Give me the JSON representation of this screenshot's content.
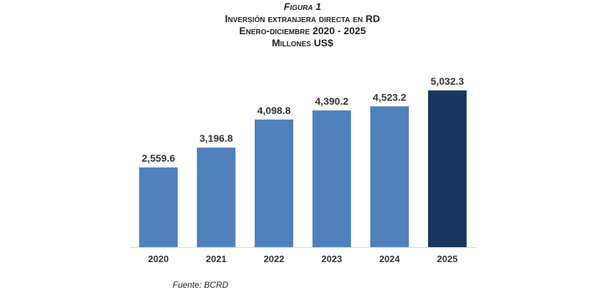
{
  "chart_data": {
    "type": "bar",
    "figure_label": "Figura 1",
    "title": "Inversión extranjera directa en RD",
    "subtitle": "Enero-diciembre 2020 - 2025",
    "units": "Millones US$",
    "categories": [
      "2020",
      "2021",
      "2022",
      "2023",
      "2024",
      "2025"
    ],
    "values": [
      2559.6,
      3196.8,
      4098.8,
      4390.2,
      4523.2,
      5032.3
    ],
    "data_labels": [
      "2,559.6",
      "3,196.8",
      "4,098.8",
      "4,390.2",
      "4,523.2",
      "5,032.3"
    ],
    "ylim": [
      0,
      5032.3
    ],
    "grid": false,
    "colors": {
      "default": "#4f81bd",
      "highlight": "#17375e"
    },
    "highlight_index": 5,
    "source": "Fuente: BCRD"
  }
}
